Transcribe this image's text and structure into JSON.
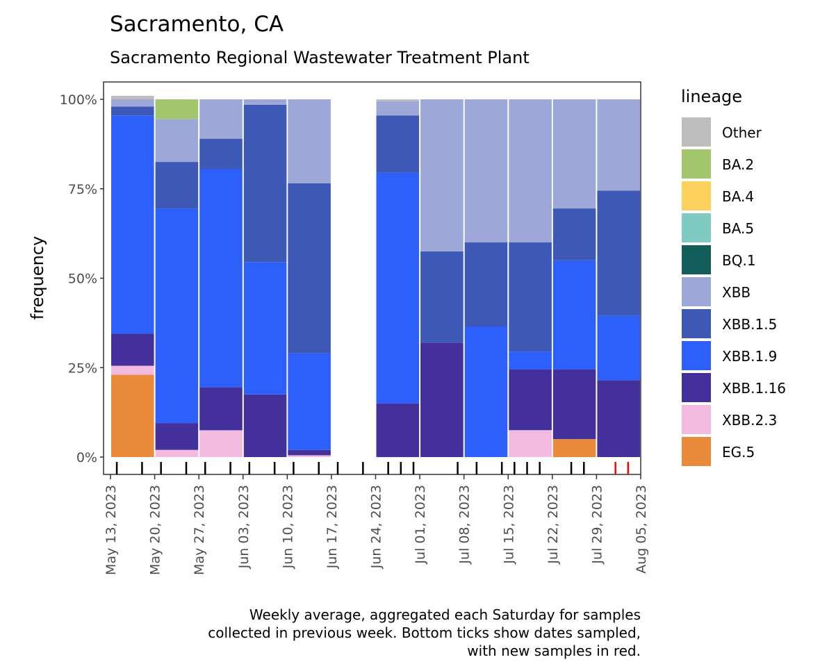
{
  "chart_data": {
    "type": "bar",
    "stacked": true,
    "title": "Sacramento, CA",
    "subtitle": "Sacramento Regional Wastewater Treatment Plant",
    "ylabel": "frequency",
    "xlabel": "",
    "ylim": [
      0,
      1
    ],
    "y_ticks": [
      "0%",
      "25%",
      "50%",
      "75%",
      "100%"
    ],
    "y_tick_values": [
      0,
      0.25,
      0.5,
      0.75,
      1.0
    ],
    "x_range_days": [
      0,
      84
    ],
    "x_ticks": [
      {
        "label": "May 13, 2023",
        "day": 0
      },
      {
        "label": "May 20, 2023",
        "day": 7
      },
      {
        "label": "May 27, 2023",
        "day": 14
      },
      {
        "label": "Jun 03, 2023",
        "day": 21
      },
      {
        "label": "Jun 10, 2023",
        "day": 28
      },
      {
        "label": "Jun 17, 2023",
        "day": 35
      },
      {
        "label": "Jun 24, 2023",
        "day": 42
      },
      {
        "label": "Jul 01, 2023",
        "day": 49
      },
      {
        "label": "Jul 08, 2023",
        "day": 56
      },
      {
        "label": "Jul 15, 2023",
        "day": 63
      },
      {
        "label": "Jul 22, 2023",
        "day": 70
      },
      {
        "label": "Jul 29, 2023",
        "day": 77
      },
      {
        "label": "Aug 05, 2023",
        "day": 84
      }
    ],
    "legend_title": "lineage",
    "lineages": [
      {
        "name": "Other",
        "color": "#bdbdbd"
      },
      {
        "name": "BA.2",
        "color": "#a1c66b"
      },
      {
        "name": "BA.4",
        "color": "#fdd25c"
      },
      {
        "name": "BA.5",
        "color": "#7fcbc1"
      },
      {
        "name": "BQ.1",
        "color": "#135e5c"
      },
      {
        "name": "XBB",
        "color": "#9ea8d8"
      },
      {
        "name": "XBB.1.5",
        "color": "#3d59b5"
      },
      {
        "name": "XBB.1.9",
        "color": "#2d5ffa"
      },
      {
        "name": "XBB.1.16",
        "color": "#43309b"
      },
      {
        "name": "XBB.2.3",
        "color": "#f2bade"
      },
      {
        "name": "EG.5",
        "color": "#ea8b3b"
      }
    ],
    "stack_order_bottom_to_top": [
      "EG.5",
      "XBB.2.3",
      "XBB.1.16",
      "XBB.1.9",
      "XBB.1.5",
      "XBB",
      "BQ.1",
      "BA.5",
      "BA.4",
      "BA.2",
      "Other"
    ],
    "bars": [
      {
        "week_ending": "May 20, 2023",
        "start_day": 0,
        "values": {
          "EG.5": 0.23,
          "XBB.2.3": 0.025,
          "XBB.1.16": 0.09,
          "XBB.1.9": 0.61,
          "XBB.1.5": 0.025,
          "XBB": 0.02,
          "Other": 0.01
        }
      },
      {
        "week_ending": "May 27, 2023",
        "start_day": 7,
        "values": {
          "XBB.2.3": 0.02,
          "XBB.1.16": 0.075,
          "XBB.1.9": 0.6,
          "XBB.1.5": 0.13,
          "XBB": 0.12,
          "BA.2": 0.055
        }
      },
      {
        "week_ending": "Jun 03, 2023",
        "start_day": 14,
        "values": {
          "XBB.2.3": 0.075,
          "XBB.1.16": 0.12,
          "XBB.1.9": 0.61,
          "XBB.1.5": 0.085,
          "XBB": 0.11
        }
      },
      {
        "week_ending": "Jun 10, 2023",
        "start_day": 21,
        "values": {
          "XBB.1.16": 0.175,
          "XBB.1.9": 0.37,
          "XBB.1.5": 0.44,
          "XBB": 0.015
        }
      },
      {
        "week_ending": "Jun 17, 2023",
        "start_day": 28,
        "values": {
          "XBB.2.3": 0.005,
          "XBB.1.16": 0.015,
          "XBB.1.9": 0.27,
          "XBB.1.5": 0.475,
          "XBB": 0.235
        }
      },
      {
        "week_ending": "Jul 01, 2023",
        "start_day": 42,
        "values": {
          "XBB.1.16": 0.15,
          "XBB.1.9": 0.645,
          "XBB.1.5": 0.16,
          "XBB": 0.04,
          "Other": 0.005
        }
      },
      {
        "week_ending": "Jul 08, 2023",
        "start_day": 49,
        "values": {
          "XBB.1.16": 0.32,
          "XBB.1.5": 0.255,
          "XBB": 0.425
        }
      },
      {
        "week_ending": "Jul 15, 2023",
        "start_day": 56,
        "values": {
          "XBB.1.9": 0.365,
          "XBB.1.5": 0.235,
          "XBB": 0.4
        }
      },
      {
        "week_ending": "Jul 22, 2023",
        "start_day": 63,
        "values": {
          "XBB.2.3": 0.075,
          "XBB.1.16": 0.17,
          "XBB.1.9": 0.05,
          "XBB.1.5": 0.305,
          "XBB": 0.4
        }
      },
      {
        "week_ending": "Jul 29, 2023",
        "start_day": 70,
        "values": {
          "EG.5": 0.05,
          "XBB.1.16": 0.195,
          "XBB.1.9": 0.305,
          "XBB.1.5": 0.145,
          "XBB": 0.305
        }
      },
      {
        "week_ending": "Aug 05, 2023",
        "start_day": 77,
        "values": {
          "XBB.1.16": 0.215,
          "XBB.1.9": 0.18,
          "XBB.1.5": 0.35,
          "XBB": 0.255
        }
      }
    ],
    "sample_days": [
      1,
      5,
      8,
      12,
      15,
      19,
      22,
      26,
      29,
      33,
      36,
      40,
      44,
      46,
      48,
      55,
      58,
      62,
      64,
      66,
      68,
      73,
      75
    ],
    "new_sample_days": [
      80,
      82
    ],
    "caption": [
      "Weekly average, aggregated each Saturday for samples",
      "collected in previous week. Bottom ticks show dates sampled,",
      "with new samples in red."
    ]
  },
  "colors": {
    "sample_tick": "#000000",
    "new_sample_tick": "#ff0000",
    "axis": "#333333",
    "tick_text": "#4d4d4d"
  }
}
